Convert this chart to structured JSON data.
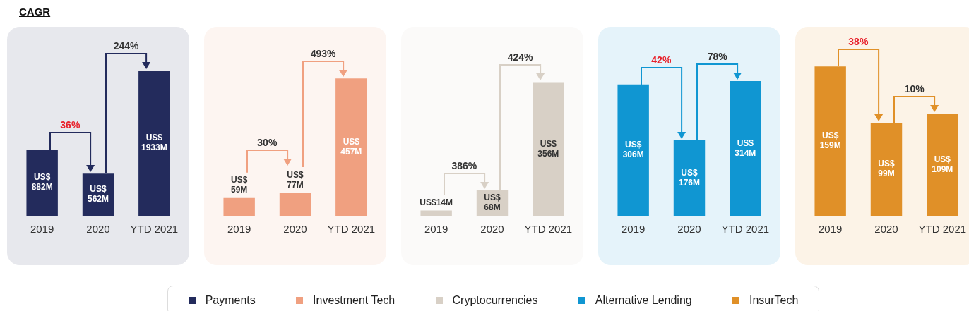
{
  "chart_data": [
    {
      "type": "bar",
      "title": "CAGR",
      "categories": [
        "2019",
        "2020",
        "YTD 2021"
      ],
      "legend": "bottom",
      "tick_labels": "x",
      "series": [
        {
          "name": "Payments",
          "color": "#232b5c",
          "values": [
            882000000,
            562000000,
            1933000000
          ],
          "value_labels": [
            "US$ 882M",
            "US$ 562M",
            "US$ 1933M"
          ]
        }
      ],
      "annotations": [
        "36%",
        "244%"
      ]
    },
    {
      "type": "bar",
      "categories": [
        "2019",
        "2020",
        "YTD 2021"
      ],
      "legend": "bottom",
      "tick_labels": "x",
      "series": [
        {
          "name": "Investment Tech",
          "color": "#f0a080",
          "values": [
            59000000,
            77000000,
            457000000
          ],
          "value_labels": [
            "US$ 59M",
            "US$ 77M",
            "US$ 457M"
          ]
        }
      ],
      "annotations": [
        "30%",
        "493%"
      ]
    },
    {
      "type": "bar",
      "categories": [
        "2019",
        "2020",
        "YTD 2021"
      ],
      "legend": "bottom",
      "tick_labels": "x",
      "series": [
        {
          "name": "Cryptocurrencies",
          "color": "#d8d0c6",
          "values": [
            14000000,
            68000000,
            356000000
          ],
          "value_labels": [
            "US$14M",
            "US$ 68M",
            "US$ 356M"
          ]
        }
      ],
      "annotations": [
        "386%",
        "424%"
      ]
    },
    {
      "type": "bar",
      "categories": [
        "2019",
        "2020",
        "YTD 2021"
      ],
      "legend": "bottom",
      "tick_labels": "x",
      "series": [
        {
          "name": "Alternative Lending",
          "color": "#1096d2",
          "values": [
            306000000,
            176000000,
            314000000
          ],
          "value_labels": [
            "US$ 306M",
            "US$ 176M",
            "US$ 314M"
          ]
        }
      ],
      "annotations": [
        "42%",
        "78%"
      ]
    },
    {
      "type": "bar",
      "categories": [
        "2019",
        "2020",
        "YTD 2021"
      ],
      "legend": "bottom",
      "tick_labels": "x",
      "series": [
        {
          "name": "InsurTech",
          "color": "#e09028",
          "values": [
            159000000,
            99000000,
            109000000
          ],
          "value_labels": [
            "US$ 159M",
            "US$ 99M",
            "US$ 109M"
          ]
        }
      ],
      "annotations": [
        "38%",
        "10%"
      ]
    }
  ]
}
